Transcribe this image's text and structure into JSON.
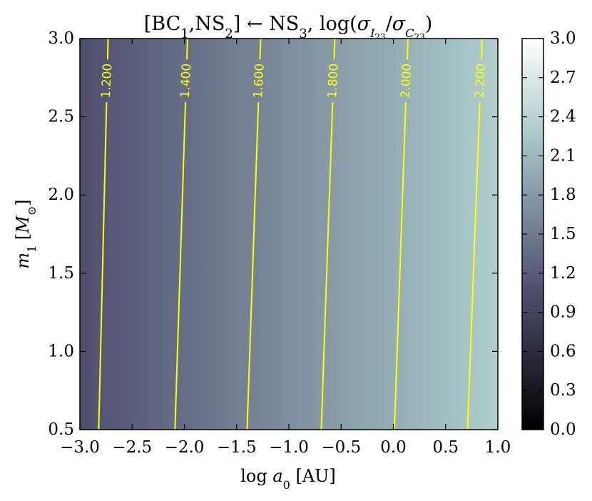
{
  "chart_data": {
    "type": "heatmap",
    "title_html": "[BC<tspan baseline-shift='sub' font-size='18'>1</tspan>,NS<tspan baseline-shift='sub' font-size='18'>2</tspan>] ← NS<tspan baseline-shift='sub' font-size='18'>3</tspan>, log(<tspan font-style='italic'>σ</tspan><tspan baseline-shift='sub' font-size='16' font-style='italic'>I</tspan><tspan baseline-shift='-14' font-size='12'>23</tspan><tspan dy='0'>/</tspan><tspan font-style='italic'>σ</tspan><tspan baseline-shift='sub' font-size='16' font-style='italic'>C</tspan><tspan baseline-shift='-14' font-size='12'>23</tspan>)",
    "title": "[BC1,NS2] ← NS3, log(σI23/σC23)",
    "xlabel": "log a0 [AU]",
    "ylabel": "m1 [M⊙]",
    "xlim": [
      -3.0,
      1.0
    ],
    "ylim": [
      0.5,
      3.0
    ],
    "xticks": [
      -3.0,
      -2.5,
      -2.0,
      -1.5,
      -1.0,
      -0.5,
      0.0,
      0.5,
      1.0
    ],
    "xtick_labels": [
      "−3.0",
      "−2.5",
      "−2.0",
      "−1.5",
      "−1.0",
      "−0.5",
      "0.0",
      "0.5",
      "1.0"
    ],
    "yticks": [
      0.5,
      1.0,
      1.5,
      2.0,
      2.5,
      3.0
    ],
    "ytick_labels": [
      "0.5",
      "1.0",
      "1.5",
      "2.0",
      "2.5",
      "3.0"
    ],
    "colorbar": {
      "colormap": "bone",
      "range": [
        0.0,
        3.0
      ],
      "ticks": [
        0.0,
        0.3,
        0.6,
        0.9,
        1.2,
        1.5,
        1.8,
        2.1,
        2.4,
        2.7,
        3.0
      ],
      "tick_labels": [
        "0.0",
        "0.3",
        "0.6",
        "0.9",
        "1.2",
        "1.5",
        "1.8",
        "2.1",
        "2.4",
        "2.7",
        "3.0"
      ]
    },
    "field": {
      "value_at_xmin": 1.06,
      "value_at_xmax": 2.32
    },
    "contour_color": "#ffff00",
    "contours": [
      {
        "level": 1.2,
        "label": "1.200",
        "x_at_ymin": -2.82,
        "x_at_ymax": -2.73,
        "label_y": 2.73
      },
      {
        "level": 1.4,
        "label": "1.400",
        "x_at_ymin": -2.09,
        "x_at_ymax": -1.97,
        "label_y": 2.73
      },
      {
        "level": 1.6,
        "label": "1.600",
        "x_at_ymin": -1.4,
        "x_at_ymax": -1.27,
        "label_y": 2.73
      },
      {
        "level": 1.8,
        "label": "1.800",
        "x_at_ymin": -0.69,
        "x_at_ymax": -0.56,
        "label_y": 2.73
      },
      {
        "level": 2.0,
        "label": "2.000",
        "x_at_ymin": 0.01,
        "x_at_ymax": 0.14,
        "label_y": 2.73
      },
      {
        "level": 2.2,
        "label": "2.200",
        "x_at_ymin": 0.71,
        "x_at_ymax": 0.85,
        "label_y": 2.73
      }
    ]
  }
}
